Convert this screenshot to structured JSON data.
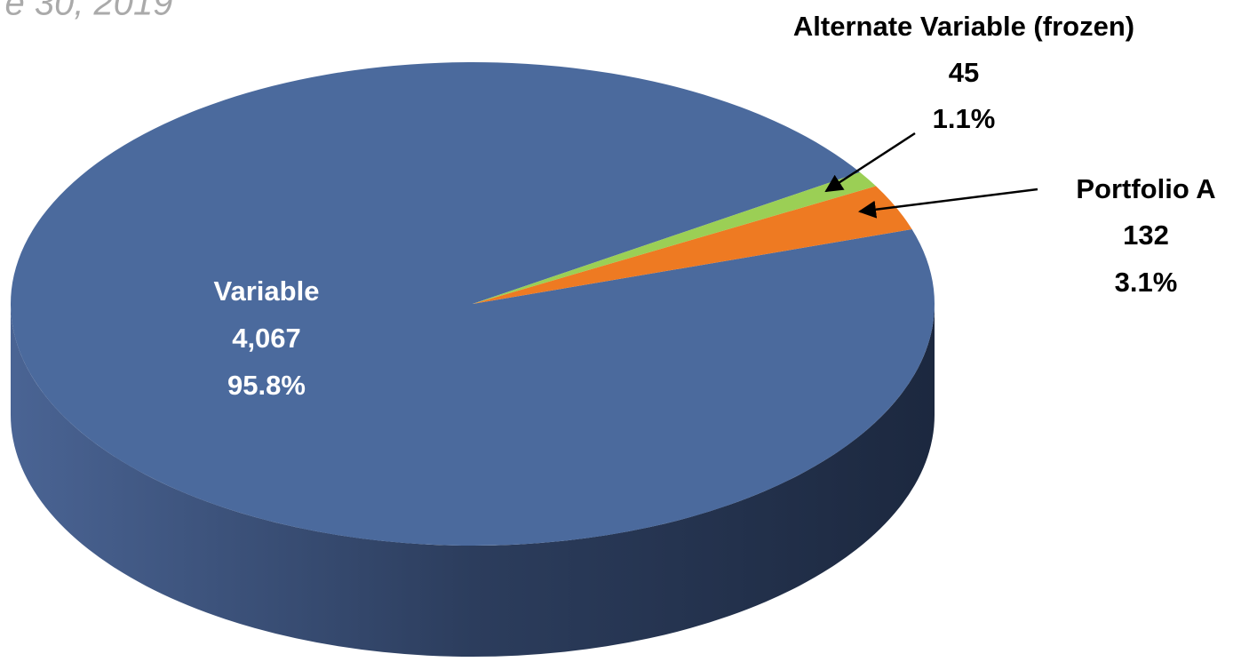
{
  "chart_data": {
    "type": "pie3d",
    "subtitle": "e 30, 2019",
    "categories": [
      "Variable",
      "Portfolio A",
      "Alternate Variable (frozen)"
    ],
    "values": [
      4067,
      132,
      45
    ],
    "value_labels": [
      "4,067",
      "132",
      "45"
    ],
    "percentages": [
      95.8,
      3.1,
      1.1
    ],
    "percentage_labels": [
      "95.8%",
      "3.1%",
      "1.1%"
    ],
    "colors": [
      "#4b6a9d",
      "#ee7a22",
      "#9bcf55"
    ]
  }
}
